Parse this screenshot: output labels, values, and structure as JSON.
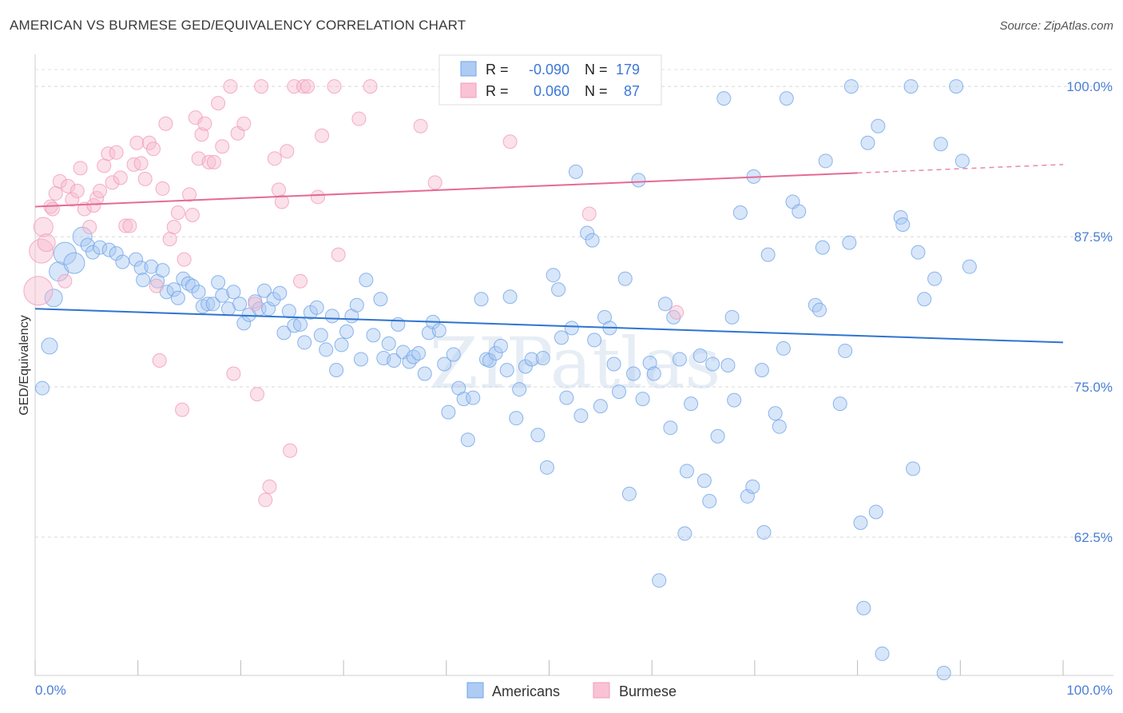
{
  "title": "AMERICAN VS BURMESE GED/EQUIVALENCY CORRELATION CHART",
  "source": "Source: ZipAtlas.com",
  "watermark": "ZIPatlas",
  "colors": {
    "americans": "#6fa5e8",
    "americans_line": "#2f74d0",
    "burmese": "#f29bb8",
    "burmese_line": "#e56a95",
    "tick_label": "#4a7fd4",
    "grid": "#d8d8d8"
  },
  "legend": {
    "americans": {
      "r_label": "R =",
      "r_value": "-0.090",
      "n_label": "N =",
      "n_value": "179"
    },
    "burmese": {
      "r_label": "R =",
      "r_value": "0.060",
      "n_label": "N =",
      "n_value": "87"
    }
  },
  "chart_data": {
    "type": "scatter",
    "xlabel": "",
    "ylabel": "GED/Equivalency",
    "xlim": [
      0,
      100
    ],
    "ylim": [
      51,
      102
    ],
    "x_tick_labels": {
      "left": "0.0%",
      "right": "100.0%"
    },
    "y_ticks": [
      {
        "value": 100,
        "label": "100.0%"
      },
      {
        "value": 87.5,
        "label": "87.5%"
      },
      {
        "value": 75,
        "label": "75.0%"
      },
      {
        "value": 62.5,
        "label": "62.5%"
      }
    ],
    "grid": true,
    "legend_position": "top-center",
    "series": [
      {
        "name": "Americans",
        "trend": {
          "x": [
            0,
            100
          ],
          "y": [
            81.5,
            78.7
          ]
        },
        "points": [
          [
            0.7,
            74.9
          ],
          [
            1.4,
            78.4
          ],
          [
            1.8,
            82.4
          ],
          [
            2.3,
            84.6
          ],
          [
            2.9,
            86.1
          ],
          [
            3.8,
            85.3
          ],
          [
            4.6,
            87.5
          ],
          [
            5.1,
            86.8
          ],
          [
            5.6,
            86.2
          ],
          [
            6.3,
            86.6
          ],
          [
            7.2,
            86.4
          ],
          [
            7.9,
            86.1
          ],
          [
            8.5,
            85.4
          ],
          [
            9.8,
            85.6
          ],
          [
            10.3,
            84.9
          ],
          [
            10.5,
            83.9
          ],
          [
            11.3,
            85.0
          ],
          [
            11.9,
            83.8
          ],
          [
            12.4,
            84.7
          ],
          [
            12.8,
            82.9
          ],
          [
            13.5,
            83.1
          ],
          [
            13.9,
            82.4
          ],
          [
            14.4,
            84.0
          ],
          [
            14.9,
            83.6
          ],
          [
            15.3,
            83.4
          ],
          [
            15.9,
            82.9
          ],
          [
            16.3,
            81.7
          ],
          [
            16.8,
            81.9
          ],
          [
            17.3,
            81.9
          ],
          [
            17.8,
            83.7
          ],
          [
            18.2,
            82.6
          ],
          [
            18.8,
            81.5
          ],
          [
            19.3,
            82.9
          ],
          [
            19.9,
            81.9
          ],
          [
            20.3,
            80.3
          ],
          [
            20.8,
            81.0
          ],
          [
            21.4,
            82.1
          ],
          [
            21.8,
            81.5
          ],
          [
            22.3,
            83.0
          ],
          [
            22.7,
            81.5
          ],
          [
            23.2,
            82.3
          ],
          [
            23.8,
            82.8
          ],
          [
            24.2,
            79.5
          ],
          [
            24.7,
            81.3
          ],
          [
            25.2,
            80.1
          ],
          [
            25.8,
            80.2
          ],
          [
            26.2,
            78.7
          ],
          [
            26.8,
            81.2
          ],
          [
            27.4,
            81.6
          ],
          [
            27.8,
            79.3
          ],
          [
            28.3,
            78.1
          ],
          [
            28.9,
            80.9
          ],
          [
            29.3,
            76.4
          ],
          [
            29.8,
            78.5
          ],
          [
            30.3,
            79.6
          ],
          [
            30.8,
            80.9
          ],
          [
            31.3,
            81.8
          ],
          [
            31.7,
            77.3
          ],
          [
            32.2,
            83.9
          ],
          [
            32.9,
            79.3
          ],
          [
            33.6,
            82.3
          ],
          [
            33.9,
            77.4
          ],
          [
            34.4,
            78.6
          ],
          [
            34.9,
            77.2
          ],
          [
            35.3,
            80.2
          ],
          [
            35.8,
            77.9
          ],
          [
            36.4,
            77.1
          ],
          [
            36.8,
            77.5
          ],
          [
            37.3,
            77.8
          ],
          [
            37.9,
            76.1
          ],
          [
            38.3,
            79.5
          ],
          [
            38.7,
            80.4
          ],
          [
            39.3,
            79.7
          ],
          [
            39.8,
            76.9
          ],
          [
            40.2,
            72.9
          ],
          [
            40.7,
            77.7
          ],
          [
            41.2,
            74.9
          ],
          [
            41.7,
            74.0
          ],
          [
            42.1,
            70.6
          ],
          [
            42.6,
            74.1
          ],
          [
            43.4,
            82.3
          ],
          [
            43.9,
            77.3
          ],
          [
            44.2,
            77.2
          ],
          [
            44.8,
            77.8
          ],
          [
            45.3,
            78.4
          ],
          [
            45.9,
            76.4
          ],
          [
            46.2,
            82.5
          ],
          [
            46.8,
            72.4
          ],
          [
            47.1,
            74.8
          ],
          [
            47.7,
            76.7
          ],
          [
            48.3,
            77.3
          ],
          [
            48.9,
            71.0
          ],
          [
            49.4,
            77.4
          ],
          [
            49.8,
            68.3
          ],
          [
            50.4,
            84.3
          ],
          [
            50.9,
            83.1
          ],
          [
            51.2,
            79.1
          ],
          [
            51.7,
            74.1
          ],
          [
            52.2,
            79.9
          ],
          [
            52.6,
            92.9
          ],
          [
            53.1,
            72.6
          ],
          [
            53.7,
            87.8
          ],
          [
            54.2,
            87.2
          ],
          [
            54.4,
            78.9
          ],
          [
            55.0,
            73.4
          ],
          [
            55.4,
            80.8
          ],
          [
            55.9,
            79.9
          ],
          [
            56.3,
            76.9
          ],
          [
            56.8,
            74.6
          ],
          [
            57.4,
            84.0
          ],
          [
            57.8,
            66.1
          ],
          [
            58.2,
            76.1
          ],
          [
            58.7,
            92.2
          ],
          [
            59.1,
            74.0
          ],
          [
            59.8,
            77.0
          ],
          [
            60.2,
            76.1
          ],
          [
            60.7,
            58.9
          ],
          [
            61.3,
            81.9
          ],
          [
            61.8,
            71.6
          ],
          [
            62.1,
            80.8
          ],
          [
            62.7,
            77.3
          ],
          [
            63.2,
            62.8
          ],
          [
            63.4,
            68.0
          ],
          [
            63.8,
            73.6
          ],
          [
            64.7,
            77.6
          ],
          [
            65.1,
            67.2
          ],
          [
            65.6,
            65.5
          ],
          [
            65.9,
            76.9
          ],
          [
            66.4,
            70.9
          ],
          [
            67.0,
            99.0
          ],
          [
            67.4,
            76.8
          ],
          [
            67.8,
            80.8
          ],
          [
            68.0,
            73.9
          ],
          [
            68.6,
            89.5
          ],
          [
            69.3,
            65.9
          ],
          [
            69.8,
            66.7
          ],
          [
            69.9,
            92.5
          ],
          [
            70.7,
            76.4
          ],
          [
            70.9,
            62.9
          ],
          [
            71.3,
            86.0
          ],
          [
            72.0,
            72.8
          ],
          [
            72.4,
            71.7
          ],
          [
            72.8,
            78.2
          ],
          [
            73.1,
            99.0
          ],
          [
            73.7,
            90.4
          ],
          [
            74.3,
            89.6
          ],
          [
            75.9,
            81.8
          ],
          [
            76.3,
            81.4
          ],
          [
            76.6,
            86.6
          ],
          [
            76.9,
            93.8
          ],
          [
            78.3,
            73.6
          ],
          [
            78.8,
            78.0
          ],
          [
            79.2,
            87.0
          ],
          [
            79.4,
            100.0
          ],
          [
            80.3,
            63.7
          ],
          [
            80.6,
            56.6
          ],
          [
            81.0,
            95.3
          ],
          [
            81.8,
            64.6
          ],
          [
            82.0,
            96.7
          ],
          [
            82.4,
            52.8
          ],
          [
            84.2,
            89.1
          ],
          [
            84.4,
            88.5
          ],
          [
            85.2,
            100.0
          ],
          [
            85.4,
            68.2
          ],
          [
            85.9,
            86.2
          ],
          [
            86.5,
            82.3
          ],
          [
            87.5,
            84.0
          ],
          [
            88.1,
            95.2
          ],
          [
            88.4,
            51.2
          ],
          [
            89.6,
            100.0
          ],
          [
            90.2,
            93.8
          ],
          [
            90.9,
            85.0
          ]
        ]
      },
      {
        "name": "Burmese",
        "trend": {
          "x": [
            0,
            100
          ],
          "y": [
            90.0,
            93.5
          ]
        },
        "points": [
          [
            0.3,
            83.0
          ],
          [
            0.6,
            86.3
          ],
          [
            0.8,
            88.3
          ],
          [
            1.1,
            87.0
          ],
          [
            1.5,
            90.0
          ],
          [
            1.7,
            89.8
          ],
          [
            2.0,
            91.1
          ],
          [
            2.4,
            92.1
          ],
          [
            2.9,
            83.8
          ],
          [
            3.2,
            91.7
          ],
          [
            3.6,
            90.6
          ],
          [
            4.1,
            91.3
          ],
          [
            4.4,
            93.2
          ],
          [
            4.8,
            89.8
          ],
          [
            5.3,
            88.3
          ],
          [
            5.7,
            90.1
          ],
          [
            6.0,
            90.7
          ],
          [
            6.3,
            91.3
          ],
          [
            6.7,
            93.4
          ],
          [
            7.1,
            94.4
          ],
          [
            7.5,
            92.0
          ],
          [
            7.9,
            94.5
          ],
          [
            8.3,
            92.4
          ],
          [
            8.8,
            88.4
          ],
          [
            9.2,
            88.4
          ],
          [
            9.6,
            93.5
          ],
          [
            9.9,
            95.3
          ],
          [
            10.3,
            93.6
          ],
          [
            10.7,
            92.3
          ],
          [
            11.1,
            95.3
          ],
          [
            11.5,
            94.8
          ],
          [
            11.8,
            83.4
          ],
          [
            12.1,
            77.2
          ],
          [
            12.4,
            91.5
          ],
          [
            12.7,
            96.9
          ],
          [
            13.1,
            87.3
          ],
          [
            13.5,
            88.3
          ],
          [
            13.9,
            89.5
          ],
          [
            14.3,
            73.1
          ],
          [
            14.5,
            85.6
          ],
          [
            15.0,
            91.0
          ],
          [
            15.3,
            89.3
          ],
          [
            15.6,
            97.4
          ],
          [
            15.9,
            94.0
          ],
          [
            16.2,
            96.0
          ],
          [
            16.5,
            96.9
          ],
          [
            16.9,
            93.7
          ],
          [
            17.4,
            93.7
          ],
          [
            17.8,
            98.6
          ],
          [
            18.2,
            95.0
          ],
          [
            19.0,
            100.0
          ],
          [
            19.3,
            76.1
          ],
          [
            19.7,
            96.1
          ],
          [
            20.3,
            96.9
          ],
          [
            21.4,
            81.9
          ],
          [
            21.6,
            74.4
          ],
          [
            22.0,
            100.0
          ],
          [
            22.4,
            65.6
          ],
          [
            22.8,
            66.7
          ],
          [
            23.3,
            94.0
          ],
          [
            23.7,
            91.4
          ],
          [
            24.0,
            90.4
          ],
          [
            24.5,
            94.6
          ],
          [
            24.8,
            69.7
          ],
          [
            25.2,
            100.0
          ],
          [
            25.8,
            83.8
          ],
          [
            26.1,
            100.0
          ],
          [
            26.5,
            100.0
          ],
          [
            27.5,
            90.8
          ],
          [
            27.9,
            95.9
          ],
          [
            29.1,
            100.0
          ],
          [
            29.5,
            86.0
          ],
          [
            31.5,
            97.3
          ],
          [
            32.6,
            100.0
          ],
          [
            37.5,
            96.7
          ],
          [
            38.9,
            92.0
          ],
          [
            46.2,
            95.4
          ],
          [
            53.9,
            89.4
          ],
          [
            62.4,
            81.2
          ]
        ]
      }
    ]
  }
}
